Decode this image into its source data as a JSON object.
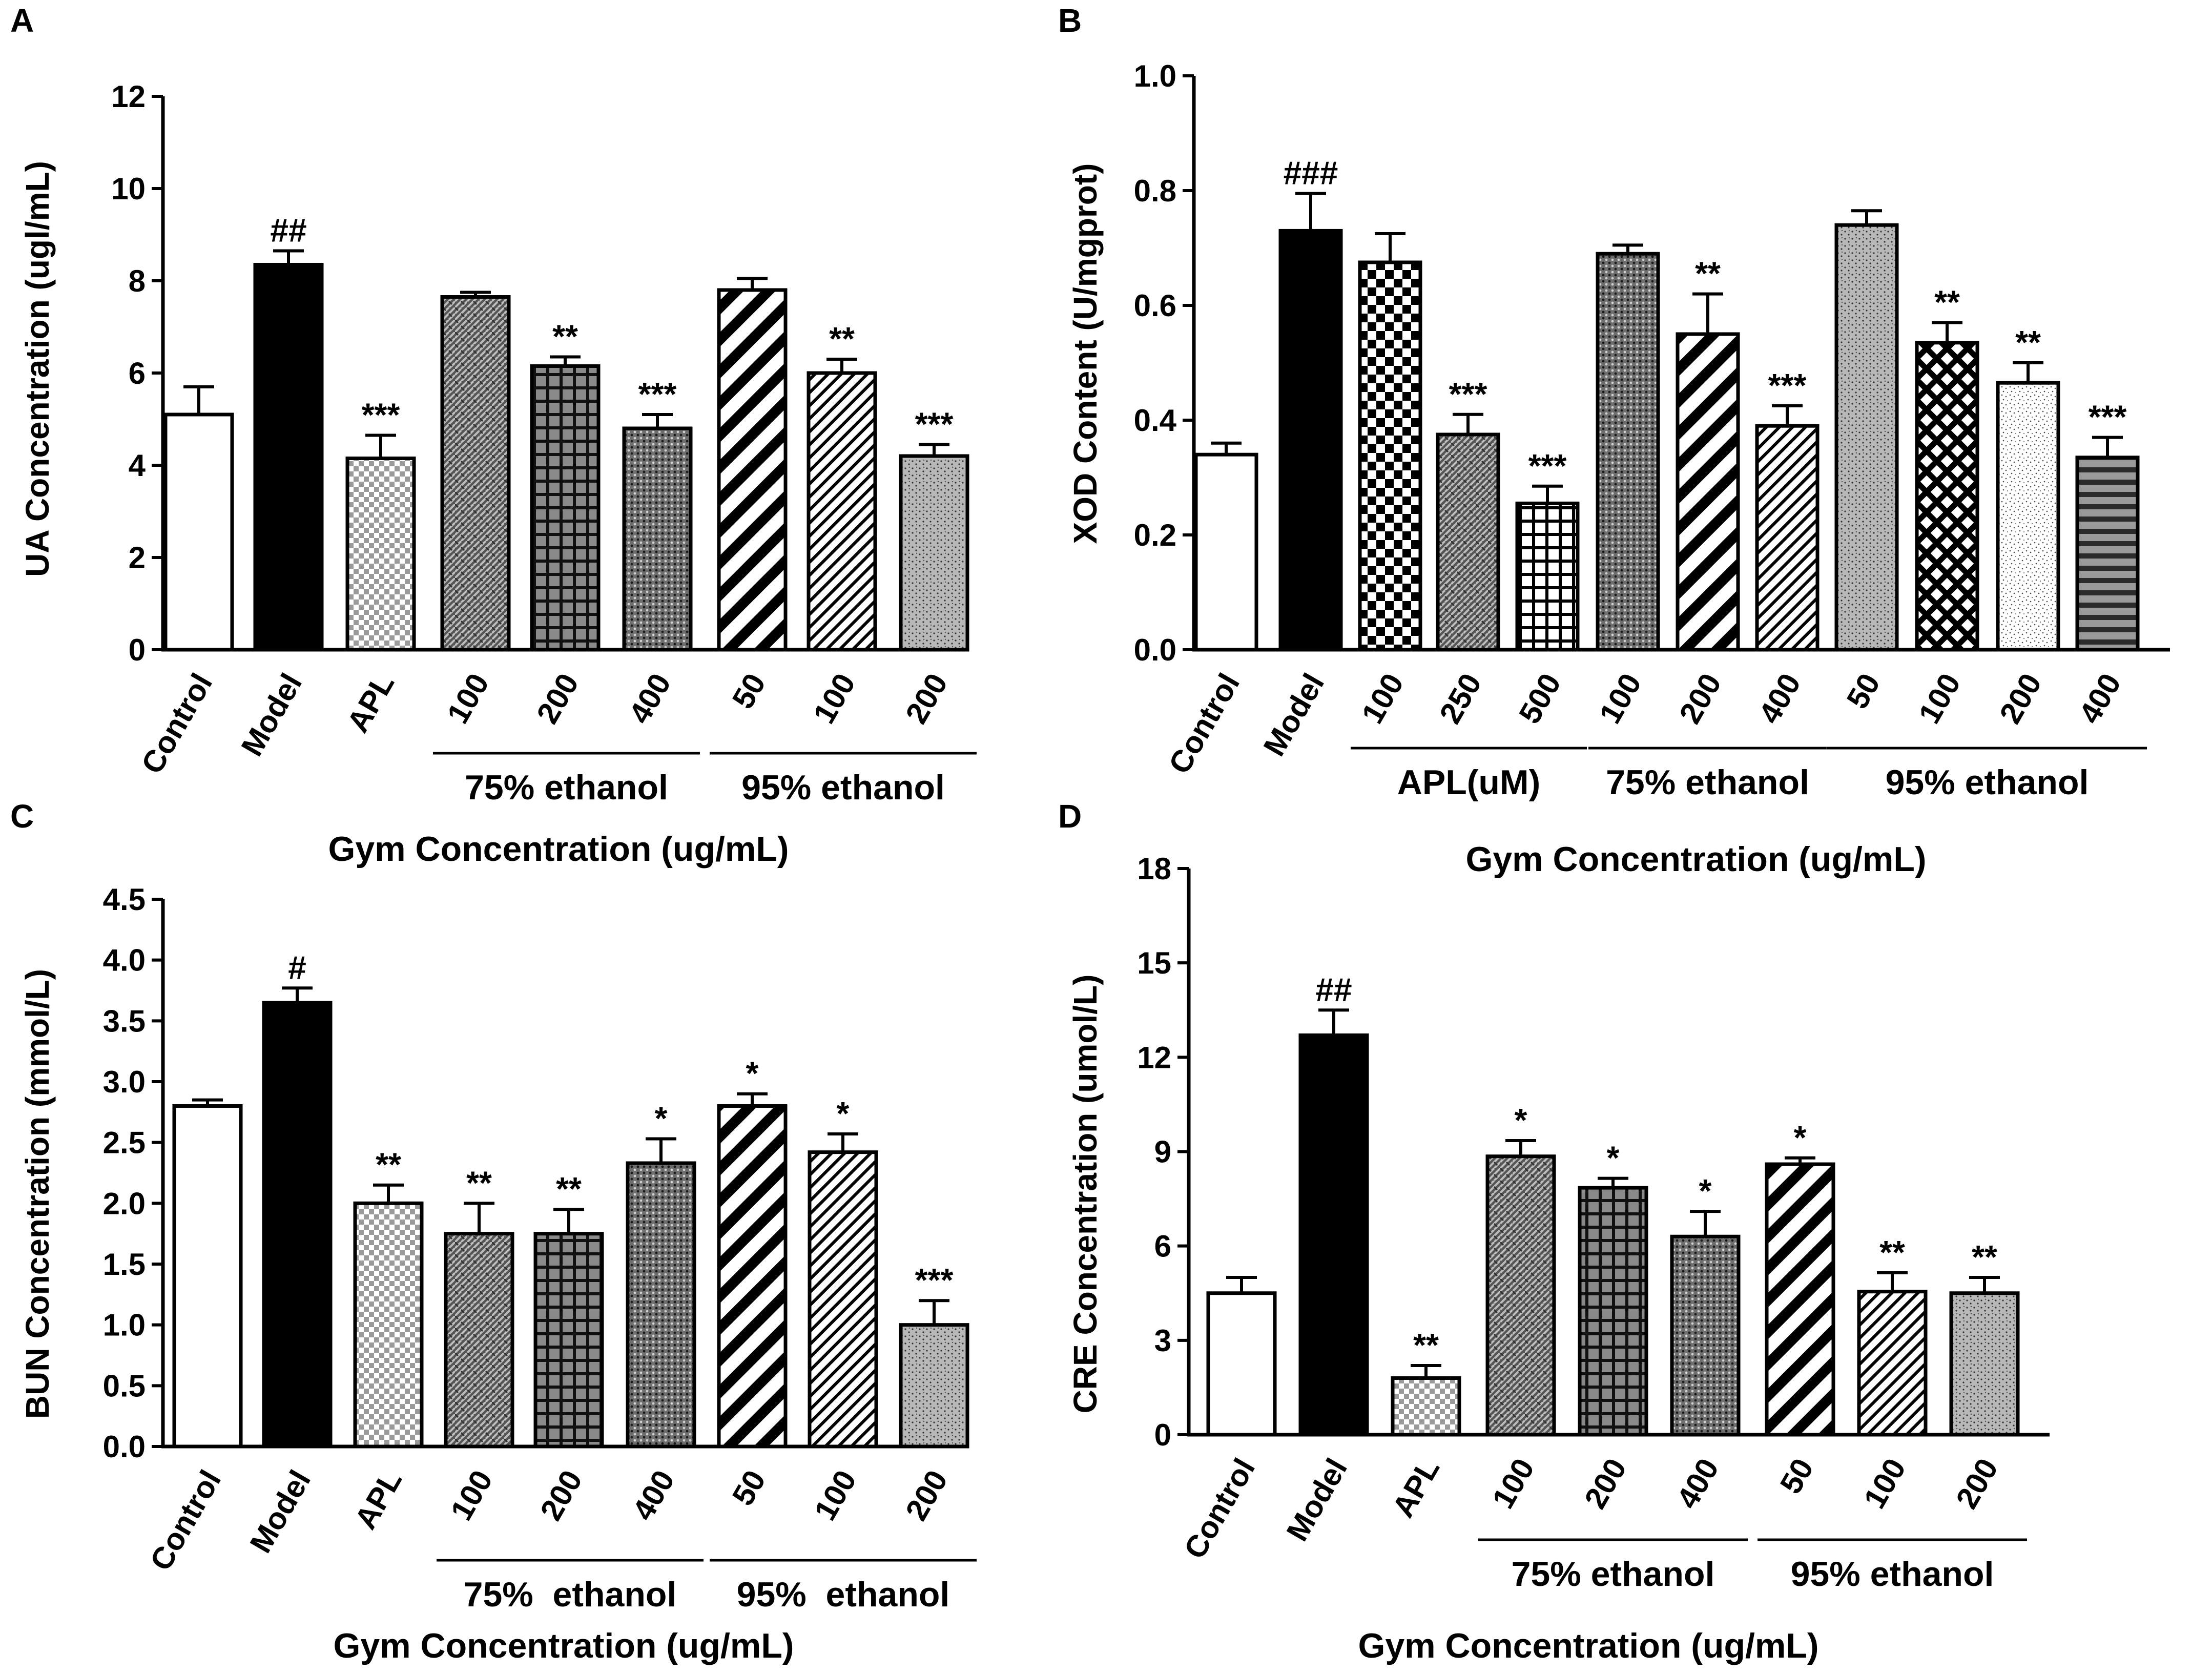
{
  "chart_data": [
    {
      "type": "bar",
      "panel": "A",
      "ylabel": "UA Concentration (ugl/mL)",
      "xlabel": "Gym Concentration (ug/mL)",
      "ylim": [
        0,
        12
      ],
      "yticks": [
        0,
        2,
        4,
        6,
        8,
        10,
        12
      ],
      "categories": [
        "Control",
        "Model",
        "APL",
        "100",
        "200",
        "400",
        "50",
        "100",
        "200"
      ],
      "values": [
        5.1,
        8.35,
        4.15,
        7.65,
        6.15,
        4.8,
        7.8,
        6.0,
        4.2
      ],
      "errors": [
        0.6,
        0.3,
        0.5,
        0.1,
        0.2,
        0.3,
        0.25,
        0.3,
        0.25
      ],
      "significance": [
        "",
        "##",
        "***",
        "",
        "**",
        "***",
        "",
        "**",
        "***"
      ],
      "patterns": [
        "white",
        "black",
        "checker",
        "weave",
        "grid",
        "dots",
        "diag-wide",
        "diag",
        "stipple"
      ],
      "groups": [
        {
          "label": "75% ethanol",
          "members": [
            3,
            5
          ]
        },
        {
          "label": "95% ethanol",
          "members": [
            6,
            8
          ]
        }
      ]
    },
    {
      "type": "bar",
      "panel": "B",
      "ylabel": "XOD Content (U/mgprot)",
      "xlabel": "Gym Concentration (ug/mL)",
      "ylim": [
        0,
        1.0
      ],
      "yticks": [
        "0.0",
        "0.2",
        "0.4",
        "0.6",
        "0.8",
        "1.0"
      ],
      "categories": [
        "Control",
        "Model",
        "100",
        "250",
        "500",
        "100",
        "200",
        "400",
        "50",
        "100",
        "200",
        "400"
      ],
      "values": [
        0.34,
        0.73,
        0.675,
        0.375,
        0.255,
        0.69,
        0.55,
        0.39,
        0.74,
        0.535,
        0.465,
        0.335
      ],
      "errors": [
        0.02,
        0.065,
        0.05,
        0.035,
        0.03,
        0.015,
        0.07,
        0.035,
        0.025,
        0.035,
        0.035,
        0.035
      ],
      "significance": [
        "",
        "###",
        "",
        "***",
        "***",
        "",
        "**",
        "***",
        "",
        "**",
        "**",
        "***"
      ],
      "patterns": [
        "white",
        "black",
        "checker-bw",
        "weave",
        "grid-bw",
        "dots",
        "diag-wide",
        "diag",
        "stipple",
        "cross-hatch",
        "speckle",
        "hlines"
      ],
      "groups": [
        {
          "label": "APL(uM)",
          "members": [
            2,
            4
          ]
        },
        {
          "label": "75% ethanol",
          "members": [
            5,
            7
          ]
        },
        {
          "label": "95% ethanol",
          "members": [
            8,
            11
          ]
        }
      ]
    },
    {
      "type": "bar",
      "panel": "C",
      "ylabel": "BUN Concentration (mmol/L)",
      "xlabel": "Gym Concentration (ug/mL)",
      "ylim": [
        0,
        4.5
      ],
      "yticks": [
        "0.0",
        "0.5",
        "1.0",
        "1.5",
        "2.0",
        "2.5",
        "3.0",
        "3.5",
        "4.0",
        "4.5"
      ],
      "categories": [
        "Control",
        "Model",
        "APL",
        "100",
        "200",
        "400",
        "50",
        "100",
        "200"
      ],
      "values": [
        2.8,
        3.65,
        2.0,
        1.75,
        1.75,
        2.33,
        2.8,
        2.42,
        1.0
      ],
      "errors": [
        0.05,
        0.12,
        0.15,
        0.25,
        0.2,
        0.2,
        0.1,
        0.15,
        0.2
      ],
      "significance": [
        "",
        "#",
        "**",
        "**",
        "**",
        "*",
        "*",
        "*",
        "***"
      ],
      "patterns": [
        "white",
        "black",
        "checker",
        "weave",
        "grid",
        "dots",
        "diag-wide",
        "diag",
        "stipple"
      ],
      "groups": [
        {
          "label": "75%  ethanol",
          "members": [
            3,
            5
          ]
        },
        {
          "label": "95%  ethanol",
          "members": [
            6,
            8
          ]
        }
      ]
    },
    {
      "type": "bar",
      "panel": "D",
      "ylabel": "CRE Concentration (umol/L)",
      "xlabel": "Gym Concentration (ug/mL)",
      "ylim": [
        0,
        18
      ],
      "yticks": [
        0,
        3,
        6,
        9,
        12,
        15,
        18
      ],
      "categories": [
        "Control",
        "Model",
        "APL",
        "100",
        "200",
        "400",
        "50",
        "100",
        "200"
      ],
      "values": [
        4.5,
        12.7,
        1.8,
        8.85,
        7.85,
        6.3,
        8.6,
        4.55,
        4.5
      ],
      "errors": [
        0.5,
        0.8,
        0.4,
        0.5,
        0.3,
        0.8,
        0.2,
        0.6,
        0.5
      ],
      "significance": [
        "",
        "##",
        "**",
        "*",
        "*",
        "*",
        "*",
        "**",
        "**"
      ],
      "patterns": [
        "white",
        "black",
        "checker",
        "weave",
        "grid",
        "dots",
        "diag-wide",
        "diag",
        "stipple"
      ],
      "groups": [
        {
          "label": "75% ethanol",
          "members": [
            3,
            5
          ]
        },
        {
          "label": "95% ethanol",
          "members": [
            6,
            8
          ]
        }
      ]
    }
  ]
}
